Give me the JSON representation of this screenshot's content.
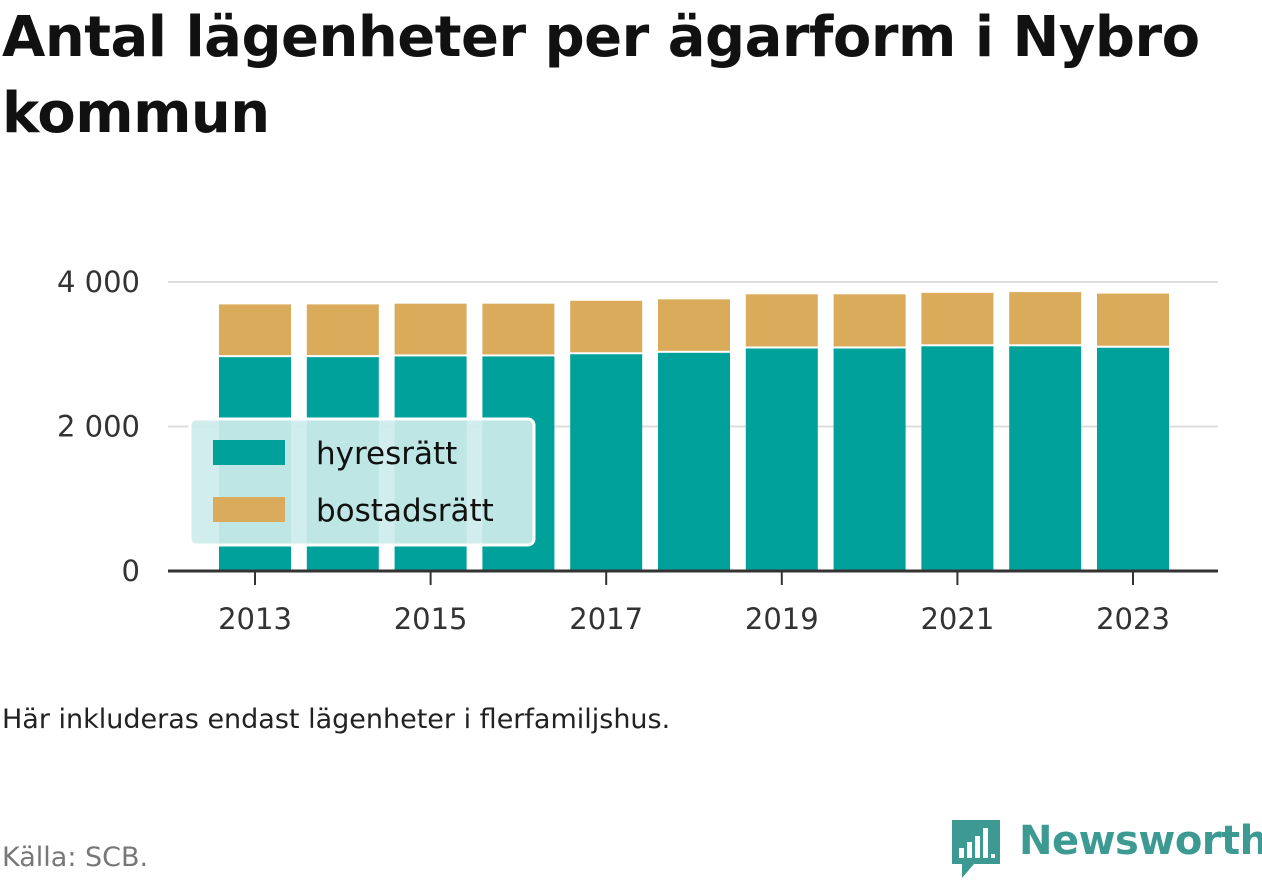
{
  "title": "Antal lägenheter per ägarform i Nybro kommun",
  "note": "Här inkluderas endast lägenheter i flerfamiljshus.",
  "source": "Källa: SCB.",
  "brand": {
    "name": "Newsworthy",
    "icon": "newsworthy-logo-icon",
    "color": "#3d9a93"
  },
  "chart_data": {
    "type": "bar",
    "stacked": true,
    "categories": [
      "2013",
      "2014",
      "2015",
      "2016",
      "2017",
      "2018",
      "2019",
      "2020",
      "2021",
      "2022",
      "2023"
    ],
    "series": [
      {
        "name": "hyresrätt",
        "color": "#00a19a",
        "values": [
          2960,
          2960,
          2970,
          2970,
          3000,
          3020,
          3080,
          3080,
          3110,
          3110,
          3090
        ]
      },
      {
        "name": "bostadsrätt",
        "color": "#d9ab5a",
        "values": [
          730,
          730,
          730,
          730,
          740,
          740,
          750,
          750,
          740,
          750,
          750
        ]
      }
    ],
    "x_tick_labels": [
      "2013",
      "2015",
      "2017",
      "2019",
      "2021",
      "2023"
    ],
    "y_tick_labels": [
      "0",
      "2 000",
      "4 000"
    ],
    "y_ticks": [
      0,
      2000,
      4000
    ],
    "ylim": [
      0,
      4000
    ],
    "grid": true,
    "legend_position": "bottom-left",
    "legend_background": "#cdeceb"
  }
}
